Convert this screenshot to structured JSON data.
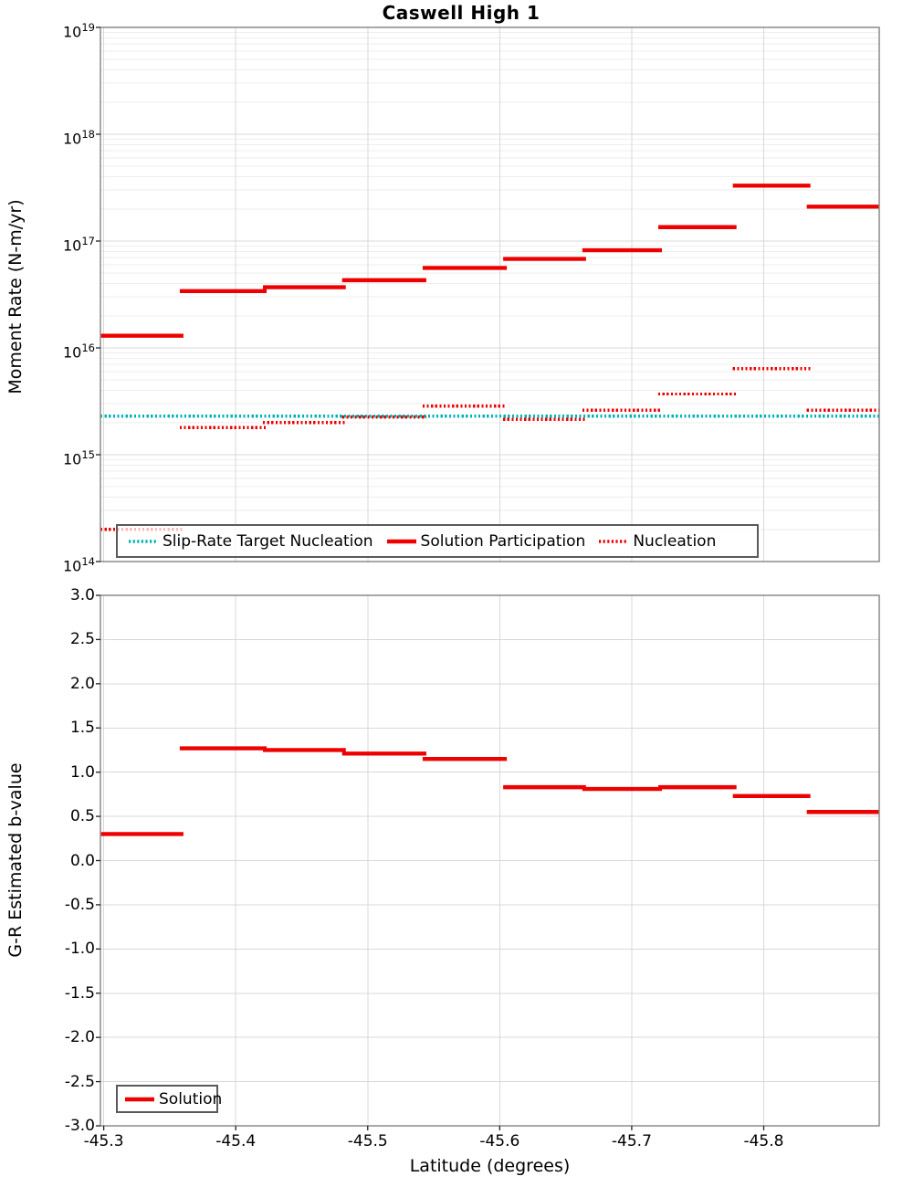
{
  "title": "Caswell High 1",
  "colors": {
    "red": "#ee0000",
    "teal": "#00b3b3",
    "grid_major": "#d8d8d8",
    "grid_minor": "#eeeeee",
    "frame": "#8a8a8a",
    "tick": "#222222",
    "legend_border": "#5a5a5a"
  },
  "chart_data": [
    {
      "type": "step-line",
      "title": "Caswell High 1",
      "ylabel": "Moment Rate (N-m/yr)",
      "yscale": "log",
      "ylim_exp": [
        14,
        19
      ],
      "ytick_exponents": [
        19,
        18,
        17,
        16,
        15,
        14
      ],
      "xlim": [
        -45.2975,
        -45.8875
      ],
      "xticks": [
        -45.3,
        -45.4,
        -45.5,
        -45.6,
        -45.7,
        -45.8
      ],
      "xtick_labels": [
        "-45.3",
        "-45.4",
        "-45.5",
        "-45.6",
        "-45.7",
        "-45.8"
      ],
      "x_axis_labels_shown": false,
      "grid": true,
      "legend_position": "bottom-left-inside",
      "bin_edges": [
        -45.2975,
        -45.359,
        -45.422,
        -45.482,
        -45.543,
        -45.604,
        -45.664,
        -45.7215,
        -45.778,
        -45.834,
        -45.8875
      ],
      "series": [
        {
          "name": "Slip-Rate Target Nucleation",
          "style": "dotted",
          "color": "#00b3b3",
          "values": [
            2300000000000000.0,
            2300000000000000.0,
            2300000000000000.0,
            2300000000000000.0,
            2300000000000000.0,
            2300000000000000.0,
            2300000000000000.0,
            2300000000000000.0,
            2300000000000000.0,
            2300000000000000.0
          ]
        },
        {
          "name": "Solution Participation",
          "style": "solid",
          "color": "#ee0000",
          "values": [
            1.3e+16,
            3.4e+16,
            3.7e+16,
            4.3e+16,
            5.6e+16,
            6.8e+16,
            8.2e+16,
            1.35e+17,
            3.3e+17,
            2.1e+17
          ]
        },
        {
          "name": "Nucleation",
          "style": "dotted",
          "color": "#ee0000",
          "values": [
            200000000000000.0,
            1800000000000000.0,
            2000000000000000.0,
            2250000000000000.0,
            2850000000000000.0,
            2150000000000000.0,
            2600000000000000.0,
            3700000000000000.0,
            6400000000000000.0,
            2600000000000000.0
          ]
        }
      ]
    },
    {
      "type": "step-line",
      "ylabel": "G-R Estimated b-value",
      "xlabel": "Latitude (degrees)",
      "yscale": "linear",
      "ylim": [
        -3.0,
        3.0
      ],
      "yticks": [
        3.0,
        2.5,
        2.0,
        1.5,
        1.0,
        0.5,
        0.0,
        -0.5,
        -1.0,
        -1.5,
        -2.0,
        -2.5,
        -3.0
      ],
      "ytick_labels": [
        "3.0",
        "2.5",
        "2.0",
        "1.5",
        "1.0",
        "0.5",
        "0.0",
        "-0.5",
        "-1.0",
        "-1.5",
        "-2.0",
        "-2.5",
        "-3.0"
      ],
      "xlim": [
        -45.2975,
        -45.8875
      ],
      "xticks": [
        -45.3,
        -45.4,
        -45.5,
        -45.6,
        -45.7,
        -45.8
      ],
      "xtick_labels": [
        "-45.3",
        "-45.4",
        "-45.5",
        "-45.6",
        "-45.7",
        "-45.8"
      ],
      "x_axis_labels_shown": true,
      "grid": true,
      "legend_position": "bottom-left-inside",
      "bin_edges": [
        -45.2975,
        -45.359,
        -45.422,
        -45.482,
        -45.543,
        -45.604,
        -45.664,
        -45.7215,
        -45.778,
        -45.834,
        -45.8875
      ],
      "series": [
        {
          "name": "Solution",
          "style": "solid",
          "color": "#ee0000",
          "values": [
            0.3,
            1.27,
            1.25,
            1.21,
            1.15,
            0.83,
            0.81,
            0.83,
            0.73,
            0.55
          ]
        }
      ]
    }
  ]
}
